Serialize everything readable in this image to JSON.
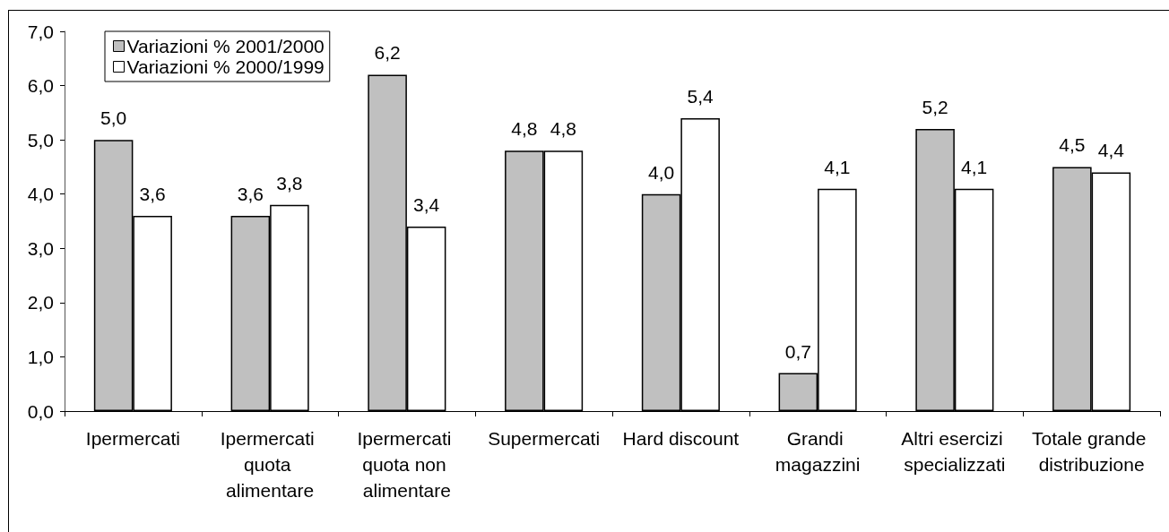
{
  "chart_data": {
    "type": "bar",
    "categories": [
      "Ipermercati",
      "Ipermercati quota alimentare",
      "Ipermercati quota non alimentare",
      "Supermercati",
      "Hard discount",
      "Grandi magazzini",
      "Altri esercizi specializzati",
      "Totale grande distribuzione"
    ],
    "series": [
      {
        "name": "Variazioni % 2001/2000",
        "color": "#c0c0c0",
        "values": [
          5.0,
          3.6,
          6.2,
          4.8,
          4.0,
          0.7,
          5.2,
          4.5
        ],
        "value_labels": [
          "5,0",
          "3,6",
          "6,2",
          "4,8",
          "4,0",
          "0,7",
          "5,2",
          "4,5"
        ]
      },
      {
        "name": "Variazioni % 2000/1999",
        "color": "#ffffff",
        "values": [
          3.6,
          3.8,
          3.4,
          4.8,
          5.4,
          4.1,
          4.1,
          4.4
        ],
        "value_labels": [
          "3,6",
          "3,8",
          "3,4",
          "4,8",
          "5,4",
          "4,1",
          "4,1",
          "4,4"
        ]
      }
    ],
    "ylim": [
      0,
      7
    ],
    "yticks": [
      {
        "value": 0,
        "label": "0,0"
      },
      {
        "value": 1,
        "label": "1,0"
      },
      {
        "value": 2,
        "label": "2,0"
      },
      {
        "value": 3,
        "label": "3,0"
      },
      {
        "value": 4,
        "label": "4,0"
      },
      {
        "value": 5,
        "label": "5,0"
      },
      {
        "value": 6,
        "label": "6,0"
      },
      {
        "value": 7,
        "label": "7,0"
      }
    ],
    "grid": false,
    "legend": "top left"
  }
}
